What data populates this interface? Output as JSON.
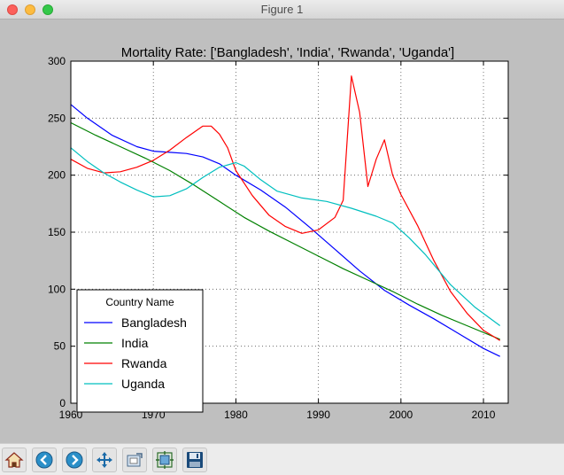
{
  "window": {
    "title": "Figure 1"
  },
  "chart_data": {
    "type": "line",
    "title": "Mortality Rate: ['Bangladesh', 'India', 'Rwanda', 'Uganda']",
    "xlabel": "",
    "ylabel": "",
    "xlim": [
      1960,
      2013
    ],
    "ylim": [
      0,
      300
    ],
    "xticks": [
      1960,
      1970,
      1980,
      1990,
      2000,
      2010
    ],
    "yticks": [
      0,
      50,
      100,
      150,
      200,
      250,
      300
    ],
    "grid": true,
    "legend": {
      "title": "Country Name",
      "placement": "lower-left"
    },
    "series": [
      {
        "name": "Bangladesh",
        "color": "#0000ff",
        "x": [
          1960,
          1962,
          1965,
          1968,
          1970,
          1972,
          1974,
          1976,
          1978,
          1980,
          1983,
          1986,
          1989,
          1992,
          1995,
          1998,
          2001,
          2004,
          2007,
          2010,
          2012
        ],
        "y": [
          262,
          250,
          235,
          225,
          221,
          220,
          219,
          216,
          210,
          200,
          187,
          172,
          154,
          135,
          116,
          99,
          86,
          74,
          61,
          48,
          41
        ]
      },
      {
        "name": "India",
        "color": "#008000",
        "x": [
          1960,
          1963,
          1966,
          1969,
          1972,
          1975,
          1978,
          1981,
          1984,
          1987,
          1990,
          1993,
          1996,
          1999,
          2002,
          2005,
          2008,
          2012
        ],
        "y": [
          246,
          235,
          225,
          215,
          204,
          191,
          177,
          163,
          151,
          140,
          129,
          118,
          108,
          98,
          87,
          77,
          68,
          56
        ]
      },
      {
        "name": "Rwanda",
        "color": "#ff0000",
        "x": [
          1960,
          1962,
          1964,
          1966,
          1968,
          1970,
          1972,
          1974,
          1976,
          1977,
          1978,
          1979,
          1980,
          1982,
          1984,
          1986,
          1988,
          1990,
          1992,
          1993,
          1994,
          1995,
          1996,
          1997,
          1998,
          1999,
          2000,
          2002,
          2004,
          2006,
          2008,
          2010,
          2012
        ],
        "y": [
          214,
          206,
          202,
          203,
          207,
          213,
          222,
          233,
          243,
          243,
          236,
          224,
          204,
          182,
          165,
          155,
          149,
          152,
          163,
          178,
          287,
          255,
          190,
          214,
          231,
          200,
          183,
          156,
          125,
          98,
          79,
          64,
          55
        ]
      },
      {
        "name": "Uganda",
        "color": "#00bfbf",
        "x": [
          1960,
          1962,
          1964,
          1966,
          1968,
          1970,
          1972,
          1974,
          1976,
          1978,
          1980,
          1981,
          1983,
          1985,
          1988,
          1991,
          1994,
          1997,
          1999,
          2001,
          2003,
          2006,
          2009,
          2012
        ],
        "y": [
          224,
          212,
          202,
          194,
          187,
          181,
          182,
          188,
          198,
          207,
          211,
          208,
          196,
          186,
          180,
          177,
          171,
          164,
          158,
          145,
          130,
          104,
          84,
          68
        ]
      }
    ]
  },
  "toolbar": {
    "buttons": [
      {
        "id": "home",
        "icon": "home-icon",
        "tooltip": "Reset original view"
      },
      {
        "id": "back",
        "icon": "back-arrow-icon",
        "tooltip": "Back to previous view"
      },
      {
        "id": "forward",
        "icon": "forward-arrow-icon",
        "tooltip": "Forward to next view"
      },
      {
        "id": "pan",
        "icon": "pan-arrows-icon",
        "tooltip": "Pan axes"
      },
      {
        "id": "zoom",
        "icon": "zoom-rect-icon",
        "tooltip": "Zoom to rectangle"
      },
      {
        "id": "subplots",
        "icon": "subplots-icon",
        "tooltip": "Configure subplots"
      },
      {
        "id": "save",
        "icon": "floppy-disk-icon",
        "tooltip": "Save the figure"
      }
    ]
  }
}
